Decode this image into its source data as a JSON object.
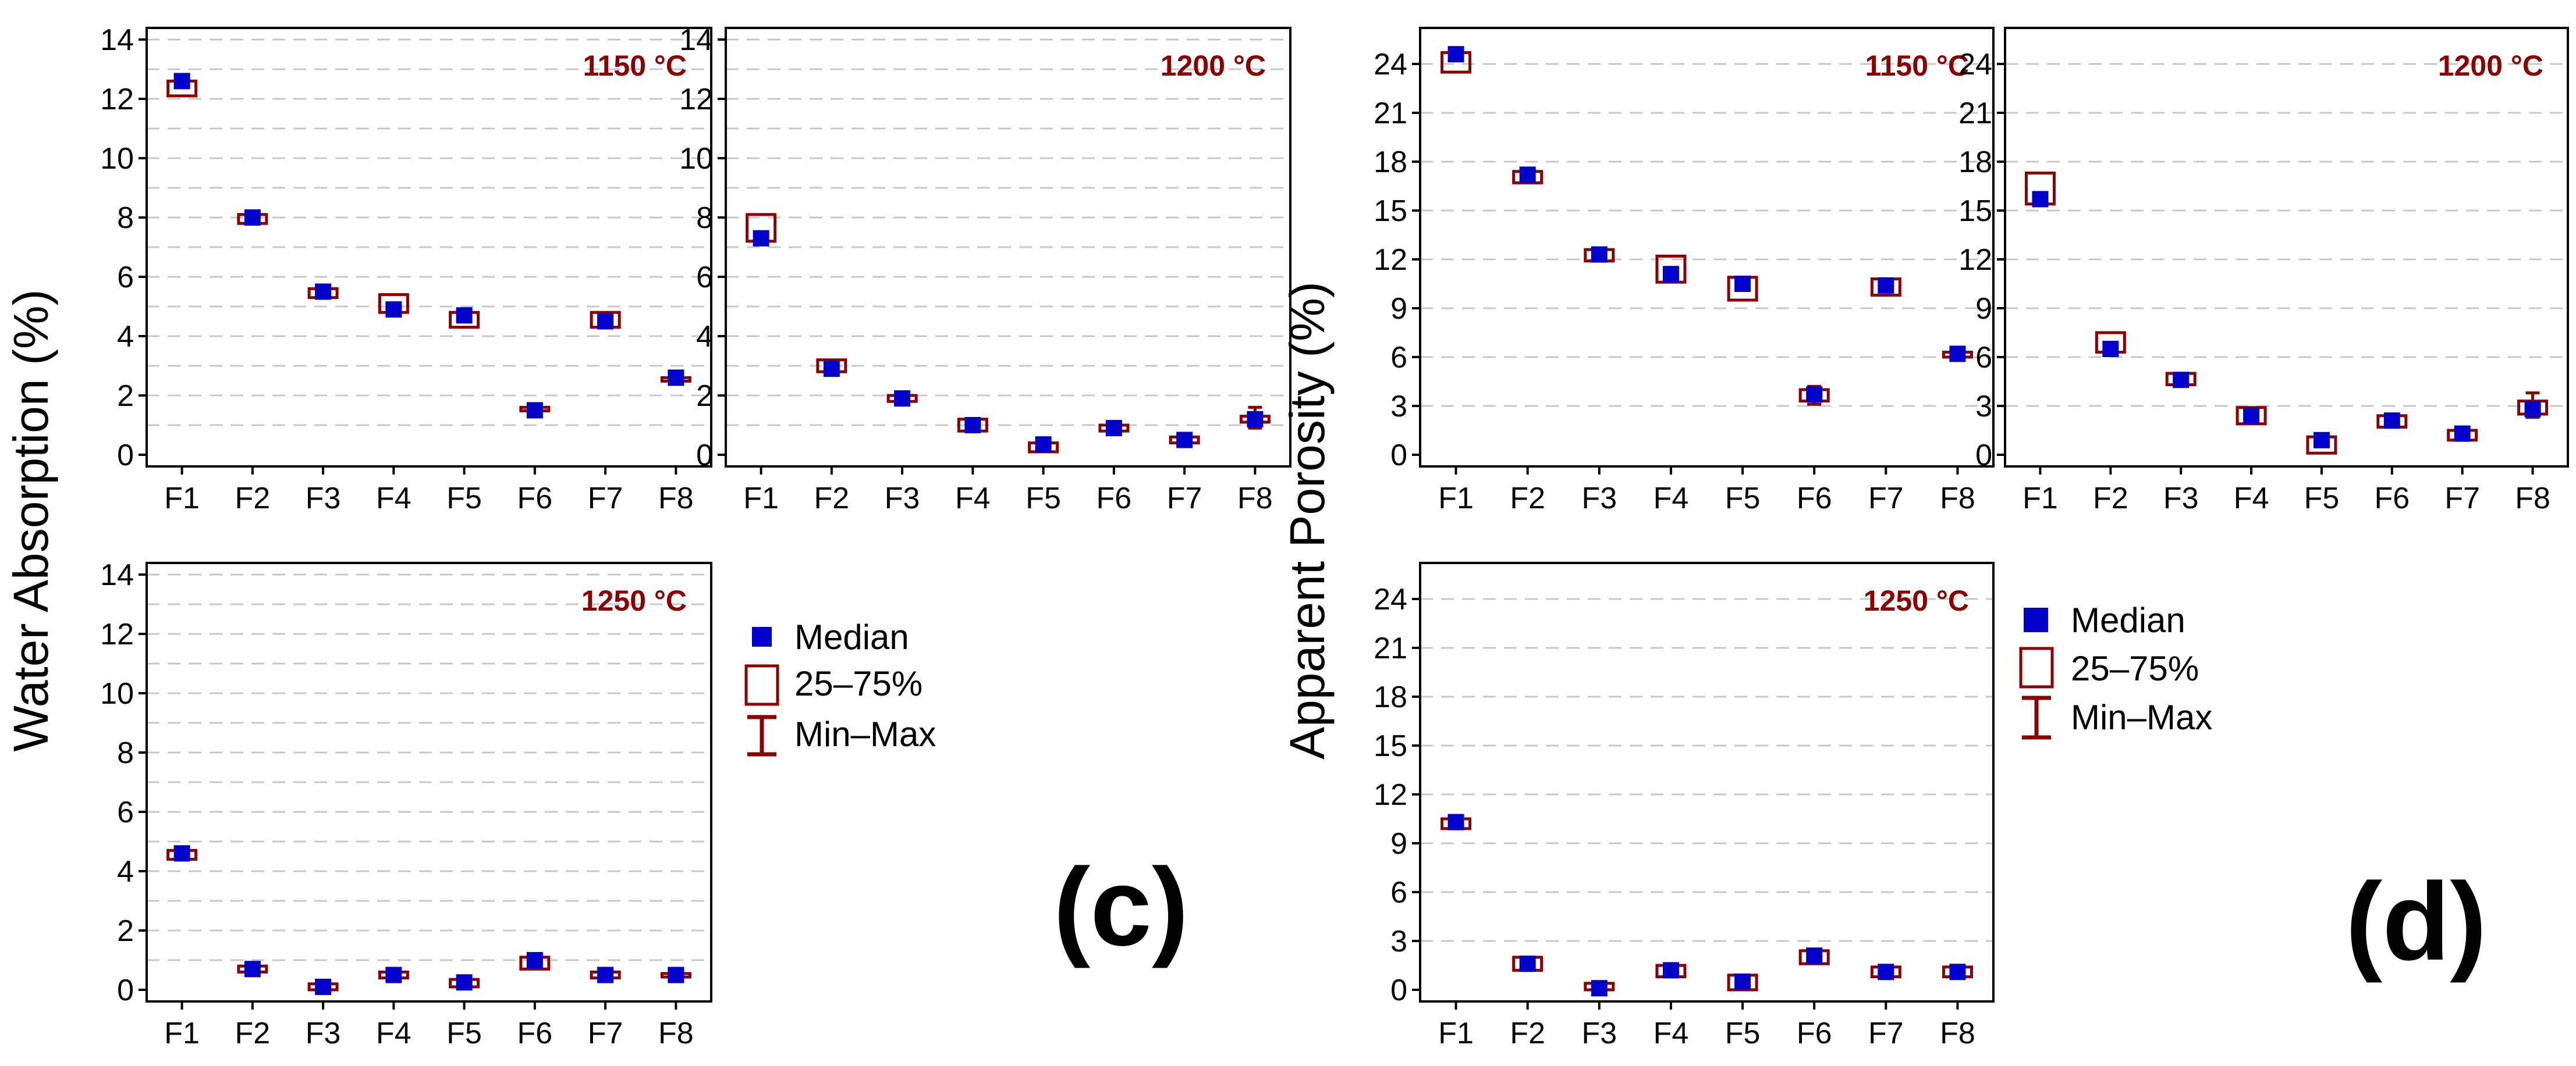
{
  "colors": {
    "median": "#0000cc",
    "box": "#8b0000",
    "whisker": "#8b0000",
    "temperature": "#8b0000"
  },
  "panels": [
    {
      "label": "(c)",
      "ylabel": "Water Absorption (%)"
    },
    {
      "label": "(d)",
      "ylabel": "Apparent Porosity (%)"
    }
  ],
  "legends": [
    {
      "median": "Median",
      "box": "25–75%",
      "range": "Min–Max"
    },
    {
      "median": "Median",
      "box": "25–75%",
      "range": "Min–Max"
    }
  ],
  "chart_data": [
    {
      "type": "box",
      "panel": "(c)",
      "title": "1150 °C",
      "ylabel": "Water Absorption (%)",
      "categories": [
        "F1",
        "F2",
        "F3",
        "F4",
        "F5",
        "F6",
        "F7",
        "F8"
      ],
      "ylim": [
        0,
        14
      ],
      "yticks": [
        0,
        2,
        4,
        6,
        8,
        10,
        12,
        14
      ],
      "median": [
        12.6,
        8.0,
        5.5,
        4.9,
        4.7,
        1.5,
        4.5,
        2.6
      ],
      "q1": [
        12.1,
        7.8,
        5.3,
        4.8,
        4.3,
        1.5,
        4.3,
        2.6
      ],
      "q3": [
        12.6,
        8.1,
        5.6,
        5.4,
        4.8,
        1.6,
        4.8,
        2.6
      ],
      "min": [
        12.1,
        7.8,
        5.3,
        4.8,
        4.3,
        1.4,
        4.3,
        2.6
      ],
      "max": [
        12.6,
        8.1,
        5.6,
        5.4,
        4.8,
        1.6,
        4.8,
        2.6
      ]
    },
    {
      "type": "box",
      "panel": "(c)",
      "title": "1200 °C",
      "ylabel": "Water Absorption (%)",
      "categories": [
        "F1",
        "F2",
        "F3",
        "F4",
        "F5",
        "F6",
        "F7",
        "F8"
      ],
      "ylim": [
        0,
        14
      ],
      "yticks": [
        0,
        2,
        4,
        6,
        8,
        10,
        12,
        14
      ],
      "median": [
        7.3,
        2.9,
        1.9,
        1.0,
        0.35,
        0.9,
        0.5,
        1.2
      ],
      "q1": [
        7.2,
        2.8,
        1.8,
        0.8,
        0.1,
        0.8,
        0.4,
        1.1
      ],
      "q3": [
        8.1,
        3.2,
        2.0,
        1.2,
        0.4,
        1.0,
        0.6,
        1.3
      ],
      "min": [
        7.2,
        2.8,
        1.8,
        0.8,
        0.1,
        0.8,
        0.4,
        0.9
      ],
      "max": [
        8.1,
        3.2,
        2.0,
        1.2,
        0.4,
        1.0,
        0.6,
        1.6
      ]
    },
    {
      "type": "box",
      "panel": "(c)",
      "title": "1250 °C",
      "ylabel": "Water Absorption (%)",
      "categories": [
        "F1",
        "F2",
        "F3",
        "F4",
        "F5",
        "F6",
        "F7",
        "F8"
      ],
      "ylim": [
        0,
        14
      ],
      "yticks": [
        0,
        2,
        4,
        6,
        8,
        10,
        12,
        14
      ],
      "median": [
        4.6,
        0.7,
        0.1,
        0.5,
        0.25,
        1.0,
        0.5,
        0.5
      ],
      "q1": [
        4.4,
        0.6,
        0.0,
        0.4,
        0.1,
        0.7,
        0.4,
        0.45
      ],
      "q3": [
        4.7,
        0.8,
        0.2,
        0.6,
        0.35,
        1.1,
        0.6,
        0.55
      ],
      "min": [
        4.4,
        0.6,
        0.0,
        0.4,
        0.1,
        0.7,
        0.4,
        0.45
      ],
      "max": [
        4.7,
        0.8,
        0.2,
        0.6,
        0.35,
        1.1,
        0.6,
        0.55
      ]
    },
    {
      "type": "box",
      "panel": "(d)",
      "title": "1150 °C",
      "ylabel": "Apparent Porosity (%)",
      "categories": [
        "F1",
        "F2",
        "F3",
        "F4",
        "F5",
        "F6",
        "F7",
        "F8"
      ],
      "ylim": [
        0,
        25.5
      ],
      "yticks": [
        0,
        3,
        6,
        9,
        12,
        15,
        18,
        21,
        24
      ],
      "median": [
        24.6,
        17.2,
        12.3,
        11.1,
        10.5,
        3.7,
        10.4,
        6.2
      ],
      "q1": [
        23.5,
        16.7,
        11.9,
        10.6,
        9.5,
        3.3,
        9.8,
        6.0
      ],
      "q3": [
        24.7,
        17.4,
        12.6,
        12.2,
        10.9,
        4.0,
        10.8,
        6.3
      ],
      "min": [
        23.5,
        16.7,
        11.9,
        10.6,
        9.5,
        3.1,
        9.8,
        6.0
      ],
      "max": [
        24.7,
        17.4,
        12.6,
        12.2,
        10.9,
        4.2,
        10.8,
        6.3
      ]
    },
    {
      "type": "box",
      "panel": "(d)",
      "title": "1200 °C",
      "ylabel": "Apparent Porosity (%)",
      "categories": [
        "F1",
        "F2",
        "F3",
        "F4",
        "F5",
        "F6",
        "F7",
        "F8"
      ],
      "ylim": [
        0,
        25.5
      ],
      "yticks": [
        0,
        3,
        6,
        9,
        12,
        15,
        18,
        21,
        24
      ],
      "median": [
        15.7,
        6.5,
        4.6,
        2.4,
        0.9,
        2.1,
        1.3,
        2.8
      ],
      "q1": [
        15.4,
        6.3,
        4.3,
        1.9,
        0.1,
        1.7,
        0.9,
        2.5
      ],
      "q3": [
        17.3,
        7.5,
        5.0,
        2.9,
        1.1,
        2.4,
        1.5,
        3.3
      ],
      "min": [
        15.4,
        6.3,
        4.3,
        1.9,
        0.1,
        1.7,
        0.9,
        2.3
      ],
      "max": [
        17.3,
        7.5,
        5.0,
        2.9,
        1.1,
        2.4,
        1.5,
        3.8
      ]
    },
    {
      "type": "box",
      "panel": "(d)",
      "title": "1250 °C",
      "ylabel": "Apparent Porosity (%)",
      "categories": [
        "F1",
        "F2",
        "F3",
        "F4",
        "F5",
        "F6",
        "F7",
        "F8"
      ],
      "ylim": [
        0,
        25.5
      ],
      "yticks": [
        0,
        3,
        6,
        9,
        12,
        15,
        18,
        21,
        24
      ],
      "median": [
        10.3,
        1.6,
        0.1,
        1.2,
        0.5,
        2.1,
        1.1,
        1.1
      ],
      "q1": [
        9.9,
        1.2,
        0.0,
        0.8,
        0.0,
        1.6,
        0.8,
        0.8
      ],
      "q3": [
        10.5,
        2.0,
        0.4,
        1.5,
        0.9,
        2.4,
        1.4,
        1.4
      ],
      "min": [
        9.9,
        1.2,
        0.0,
        0.8,
        0.0,
        1.6,
        0.8,
        0.8
      ],
      "max": [
        10.5,
        2.0,
        0.4,
        1.5,
        0.9,
        2.4,
        1.4,
        1.4
      ]
    }
  ]
}
